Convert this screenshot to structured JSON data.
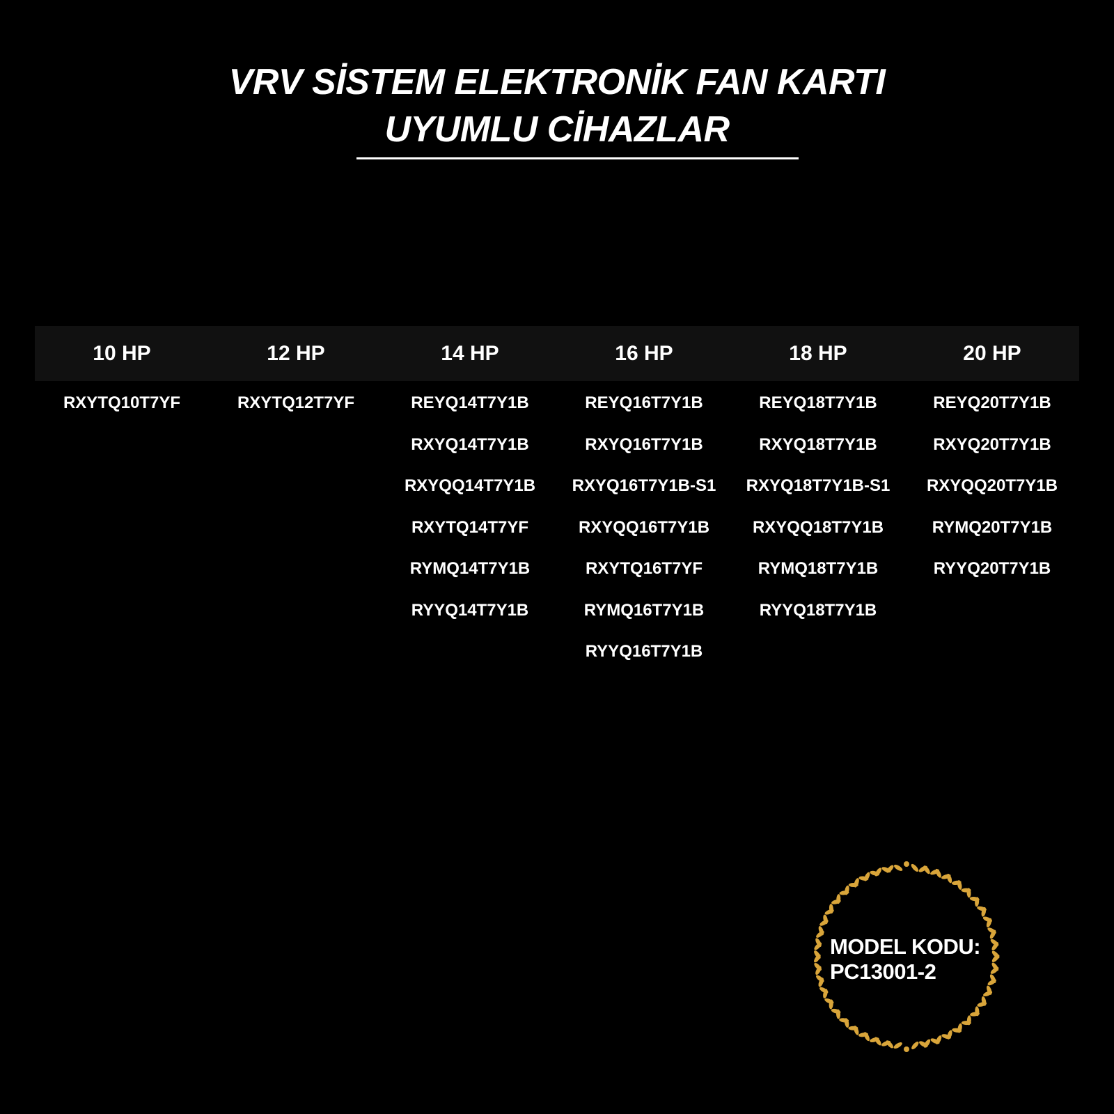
{
  "title": {
    "line1": "VRV SİSTEM ELEKTRONİK FAN KARTI",
    "line2": "UYUMLU CİHAZLAR"
  },
  "table": {
    "columns": [
      {
        "header": "10 HP",
        "models": [
          "RXYTQ10T7YF"
        ]
      },
      {
        "header": "12 HP",
        "models": [
          "RXYTQ12T7YF"
        ]
      },
      {
        "header": "14 HP",
        "models": [
          "REYQ14T7Y1B",
          "RXYQ14T7Y1B",
          "RXYQQ14T7Y1B",
          "RXYTQ14T7YF",
          "RYMQ14T7Y1B",
          "RYYQ14T7Y1B"
        ]
      },
      {
        "header": "16 HP",
        "models": [
          "REYQ16T7Y1B",
          "RXYQ16T7Y1B",
          "RXYQ16T7Y1B-S1",
          "RXYQQ16T7Y1B",
          "RXYTQ16T7YF",
          "RYMQ16T7Y1B",
          "RYYQ16T7Y1B"
        ]
      },
      {
        "header": "18 HP",
        "models": [
          "REYQ18T7Y1B",
          "RXYQ18T7Y1B",
          "RXYQ18T7Y1B-S1",
          "RXYQQ18T7Y1B",
          "RYMQ18T7Y1B",
          "RYYQ18T7Y1B"
        ]
      },
      {
        "header": "20 HP",
        "models": [
          "REYQ20T7Y1B",
          "RXYQ20T7Y1B",
          "RXYQQ20T7Y1B",
          "RYMQ20T7Y1B",
          "RYYQ20T7Y1B"
        ]
      }
    ]
  },
  "badge": {
    "line1": "MODEL KODU:",
    "line2": "PC13001-2",
    "icon": "laurel-wreath-icon",
    "color": "#d9a53a"
  }
}
